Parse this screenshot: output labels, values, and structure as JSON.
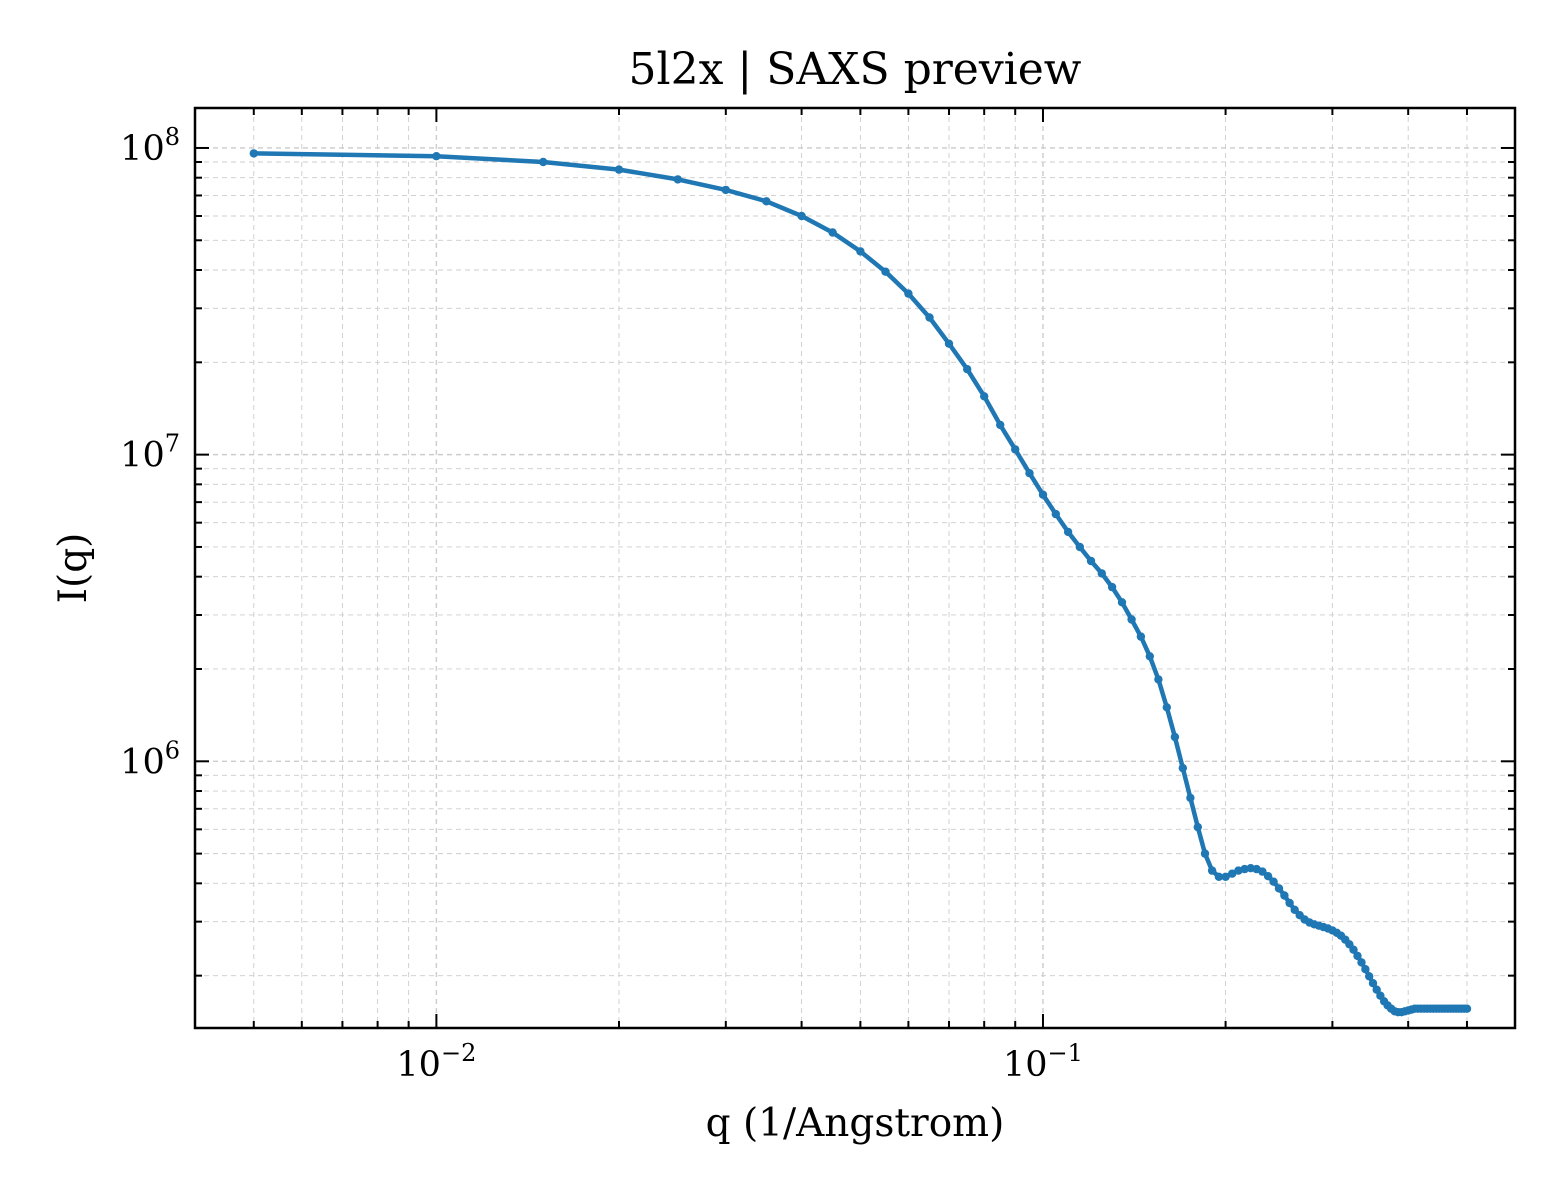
{
  "chart_data": {
    "type": "line",
    "title": "5l2x | SAXS preview",
    "xlabel": "q (1/Angstrom)",
    "ylabel": "I(q)",
    "xscale": "log",
    "yscale": "log",
    "xlim": [
      0.004,
      0.6
    ],
    "ylim": [
      135000,
      135000000
    ],
    "grid": true,
    "legend": "none",
    "color": "#1f77b4",
    "x_ticks": [
      {
        "base": "10",
        "exp": "−2",
        "value": 0.01
      },
      {
        "base": "10",
        "exp": "−1",
        "value": 0.1
      }
    ],
    "y_ticks": [
      {
        "base": "10",
        "exp": "6",
        "value": 1000000
      },
      {
        "base": "10",
        "exp": "7",
        "value": 10000000
      },
      {
        "base": "10",
        "exp": "8",
        "value": 100000000
      }
    ],
    "series": [
      {
        "x": [
          0.005,
          0.01,
          0.015,
          0.02,
          0.025,
          0.03,
          0.035,
          0.04,
          0.045,
          0.05,
          0.055,
          0.06,
          0.065,
          0.07,
          0.075,
          0.08,
          0.085,
          0.09,
          0.095,
          0.1,
          0.105,
          0.11,
          0.115,
          0.12,
          0.125,
          0.13,
          0.135,
          0.14,
          0.145,
          0.15,
          0.155,
          0.16,
          0.165,
          0.17,
          0.175,
          0.18,
          0.185,
          0.19,
          0.195,
          0.2,
          0.205,
          0.21,
          0.215,
          0.22,
          0.225,
          0.23,
          0.235,
          0.24,
          0.245,
          0.25,
          0.255,
          0.26,
          0.265,
          0.27,
          0.275,
          0.28,
          0.285,
          0.29,
          0.295,
          0.3,
          0.305,
          0.31,
          0.315,
          0.32,
          0.325,
          0.33,
          0.335,
          0.34,
          0.345,
          0.35,
          0.355,
          0.36,
          0.365,
          0.37,
          0.375,
          0.38,
          0.385,
          0.39,
          0.395,
          0.4,
          0.405,
          0.41,
          0.415,
          0.42,
          0.425,
          0.43,
          0.435,
          0.44,
          0.445,
          0.45,
          0.455,
          0.46,
          0.465,
          0.47,
          0.475,
          0.48,
          0.485,
          0.49,
          0.495,
          0.5
        ],
        "y": [
          96000000,
          94000000,
          90000000,
          85000000,
          79000000,
          73000000,
          67000000,
          60000000,
          53000000,
          46000000,
          39500000,
          33500000,
          28000000,
          23000000,
          19000000,
          15500000,
          12500000,
          10400000,
          8700000,
          7400000,
          6400000,
          5600000,
          5000000,
          4500000,
          4100000,
          3700000,
          3300000,
          2900000,
          2550000,
          2200000,
          1850000,
          1500000,
          1200000,
          950000,
          760000,
          610000,
          500000,
          440000,
          420000,
          420000,
          430000,
          440000,
          445000,
          448000,
          445000,
          437000,
          422000,
          405000,
          385000,
          365000,
          345000,
          328000,
          315000,
          305000,
          298000,
          294000,
          291000,
          288000,
          285000,
          281000,
          276000,
          270000,
          262000,
          253000,
          243000,
          232000,
          221000,
          210000,
          199000,
          189000,
          180000,
          172000,
          165000,
          160000,
          156000,
          153000,
          152000,
          152000,
          153000,
          154000,
          155000,
          156000,
          156000,
          156000,
          156000,
          156000,
          156000,
          156000,
          156000,
          156000,
          156000,
          156000,
          156000,
          156000,
          156000,
          156000,
          156000,
          156000,
          156000,
          156000
        ]
      }
    ]
  }
}
